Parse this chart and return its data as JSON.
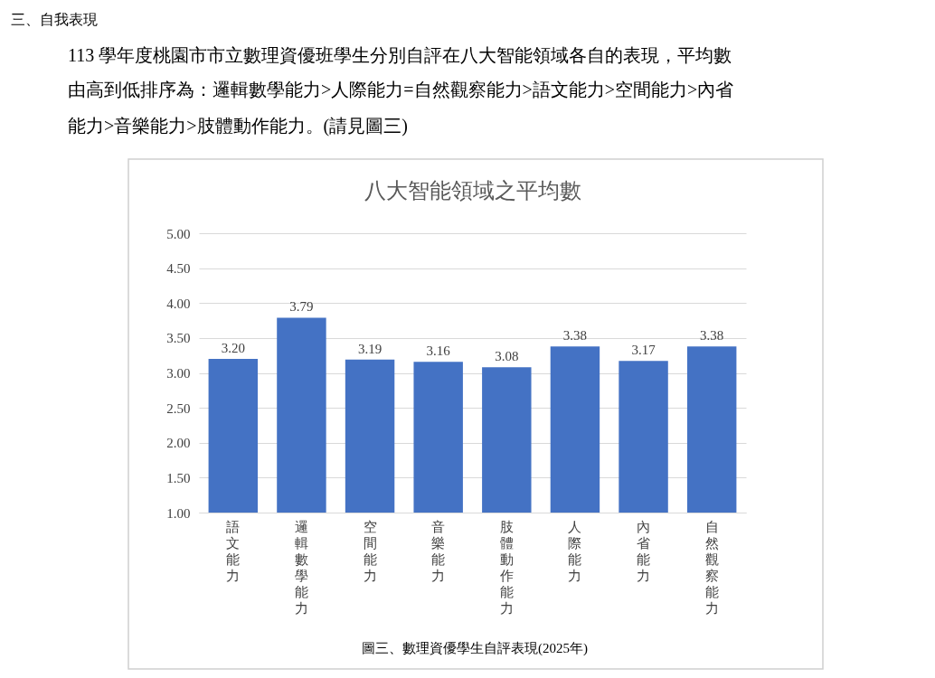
{
  "chart_data": {
    "type": "bar",
    "title": "八大智能領域之平均數",
    "categories": [
      "語文能力",
      "邏輯數學能力",
      "空間能力",
      "音樂能力",
      "肢體動作能力",
      "人際能力",
      "內省能力",
      "自然觀察能力"
    ],
    "values": [
      3.2,
      3.79,
      3.19,
      3.16,
      3.08,
      3.38,
      3.17,
      3.38
    ],
    "value_labels": [
      "3.20",
      "3.79",
      "3.19",
      "3.16",
      "3.08",
      "3.38",
      "3.17",
      "3.38"
    ],
    "color": "#4472c4",
    "ylim": [
      1,
      5
    ],
    "yticks": [
      {
        "value": 1,
        "label": "1.00"
      },
      {
        "value": 1.5,
        "label": "1.50"
      },
      {
        "value": 2,
        "label": "2.00"
      },
      {
        "value": 2.5,
        "label": "2.50"
      },
      {
        "value": 3,
        "label": "3.00"
      },
      {
        "value": 3.5,
        "label": "3.50"
      },
      {
        "value": 4,
        "label": "4.00"
      },
      {
        "value": 4.5,
        "label": "4.50"
      },
      {
        "value": 5,
        "label": "5.00"
      }
    ],
    "grid": "y",
    "annotations": [
      "三、自我表現",
      "113 學年度桃園市市立數理資優班學生分別自評在八大智能領域各自的表現，平均數",
      "由高到低排序為：邏輯數學能力>人際能力=自然觀察能力>語文能力>空間能力>內省",
      "能力>音樂能力>肢體動作能力。(請見圖三)",
      "圖三、數理資優學生自評表現(2025年)"
    ]
  }
}
